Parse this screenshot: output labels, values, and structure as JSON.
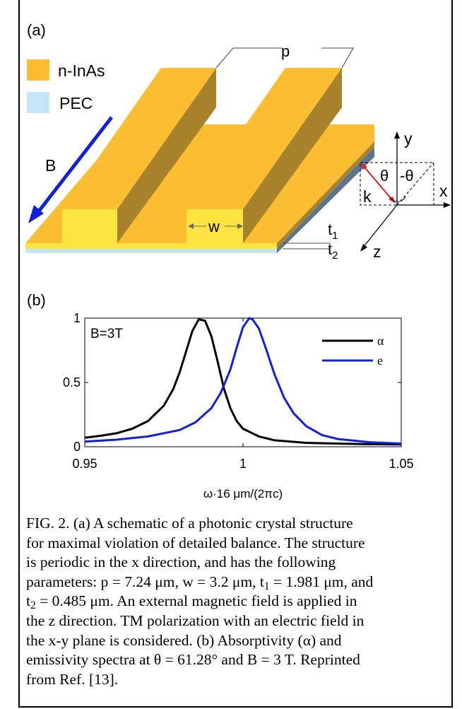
{
  "panel_a": {
    "label": "(a)",
    "legend": [
      {
        "text": "n-InAs",
        "color": "#fbbd32"
      },
      {
        "text": "PEC",
        "color": "#c4e6f8"
      }
    ],
    "labels": {
      "p": "p",
      "B": "B",
      "w": "w",
      "t1": "t",
      "t1_sub": "1",
      "t2": "t",
      "t2_sub": "2",
      "x": "x",
      "y": "y",
      "z": "z",
      "k": "k",
      "theta": "θ",
      "neg_theta": "-θ"
    },
    "colors": {
      "gold_top": "#fbbd32",
      "gold_side": "#a8822c",
      "yellow_face": "#fde440",
      "pec": "#c4e6f8",
      "pec_side": "#5a7591",
      "arrow": "#1020d8",
      "k_arrow": "#e02020"
    }
  },
  "panel_b": {
    "label": "(b)"
  },
  "chart_data": {
    "type": "line",
    "annotation": "B=3T",
    "xlabel": "ω·16 μm/(2πc)",
    "ylabel": "",
    "xlim": [
      0.95,
      1.05
    ],
    "ylim": [
      0,
      1
    ],
    "xticks": [
      "0.95",
      "1",
      "1.05"
    ],
    "yticks": [
      "0",
      "0.5",
      "1"
    ],
    "legend_position": "top-right",
    "series": [
      {
        "name": "α",
        "color": "#000000",
        "x": [
          0.95,
          0.955,
          0.96,
          0.965,
          0.97,
          0.975,
          0.978,
          0.98,
          0.982,
          0.984,
          0.986,
          0.988,
          0.99,
          0.992,
          0.994,
          0.996,
          0.998,
          1.0,
          1.005,
          1.01,
          1.02,
          1.03,
          1.04,
          1.05
        ],
        "y": [
          0.07,
          0.085,
          0.105,
          0.14,
          0.2,
          0.32,
          0.45,
          0.58,
          0.74,
          0.9,
          0.99,
          0.98,
          0.86,
          0.66,
          0.45,
          0.3,
          0.2,
          0.14,
          0.08,
          0.05,
          0.03,
          0.025,
          0.02,
          0.018
        ]
      },
      {
        "name": "e",
        "color": "#1020d8",
        "x": [
          0.95,
          0.96,
          0.97,
          0.98,
          0.985,
          0.99,
          0.993,
          0.996,
          0.998,
          1.0,
          1.002,
          1.003,
          1.005,
          1.007,
          1.01,
          1.013,
          1.016,
          1.02,
          1.025,
          1.03,
          1.04,
          1.05
        ],
        "y": [
          0.04,
          0.055,
          0.08,
          0.13,
          0.19,
          0.3,
          0.42,
          0.6,
          0.77,
          0.93,
          1.0,
          0.99,
          0.92,
          0.78,
          0.56,
          0.38,
          0.26,
          0.16,
          0.09,
          0.06,
          0.035,
          0.025
        ]
      }
    ]
  },
  "caption": {
    "line1": "FIG. 2. (a) A schematic of a photonic crystal structure",
    "line2": "for maximal violation of detailed balance. The structure",
    "line3": "is periodic in the x direction, and has the following",
    "line4a": "parameters: p = 7.24 μm, w = 3.2 μm, t",
    "line4sub1": "1",
    "line4b": " = 1.981 μm, and",
    "line5a": "t",
    "line5sub": "2",
    "line5b": " = 0.485 μm. An external magnetic field is applied in",
    "line6": "the z direction. TM polarization with an electric field in",
    "line7": "the x-y plane is considered. (b) Absorptivity (α) and",
    "line8": "emissivity spectra at θ = 61.28° and B = 3 T. Reprinted",
    "line9": "from Ref. [13]."
  }
}
